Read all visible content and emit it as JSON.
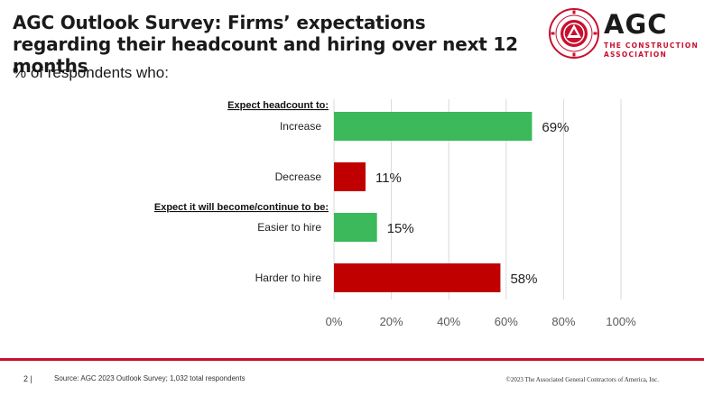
{
  "header": {
    "title": "AGC Outlook Survey: Firms’ expectations regarding their headcount  and hiring over next 12 months",
    "subtitle": "% of respondents who:"
  },
  "logo": {
    "wordmark": "AGC",
    "line1": "THE CONSTRUCTION",
    "line2": "ASSOCIATION",
    "seal_text": "ASSOCIATED GENERAL CONTRACTORS OF AMERICA"
  },
  "colors": {
    "increase": "#3cb95a",
    "decrease": "#c00000",
    "grid": "#d9d9d9",
    "brand_red": "#c8102e"
  },
  "chart_data": {
    "type": "bar",
    "orientation": "horizontal",
    "groups": [
      {
        "header": "Expect headcount to:",
        "categories": [
          "Increase",
          "Decrease"
        ],
        "values": [
          69,
          11
        ],
        "colors": [
          "#3cb95a",
          "#c00000"
        ]
      },
      {
        "header": "Expect it will become/continue to be:",
        "categories": [
          "Easier to hire",
          "Harder to hire"
        ],
        "values": [
          15,
          58
        ],
        "colors": [
          "#3cb95a",
          "#c00000"
        ]
      }
    ],
    "x_ticks": [
      "0%",
      "20%",
      "40%",
      "60%",
      "80%",
      "100%"
    ],
    "xlim": [
      0,
      100
    ],
    "value_suffix": "%",
    "grid": true,
    "legend": "none"
  },
  "footer": {
    "page": "2 |",
    "source": "Source: AGC 2023 Outlook Survey; 1,032 total respondents",
    "copyright": "©2023 The Associated General Contractors of America, Inc."
  }
}
